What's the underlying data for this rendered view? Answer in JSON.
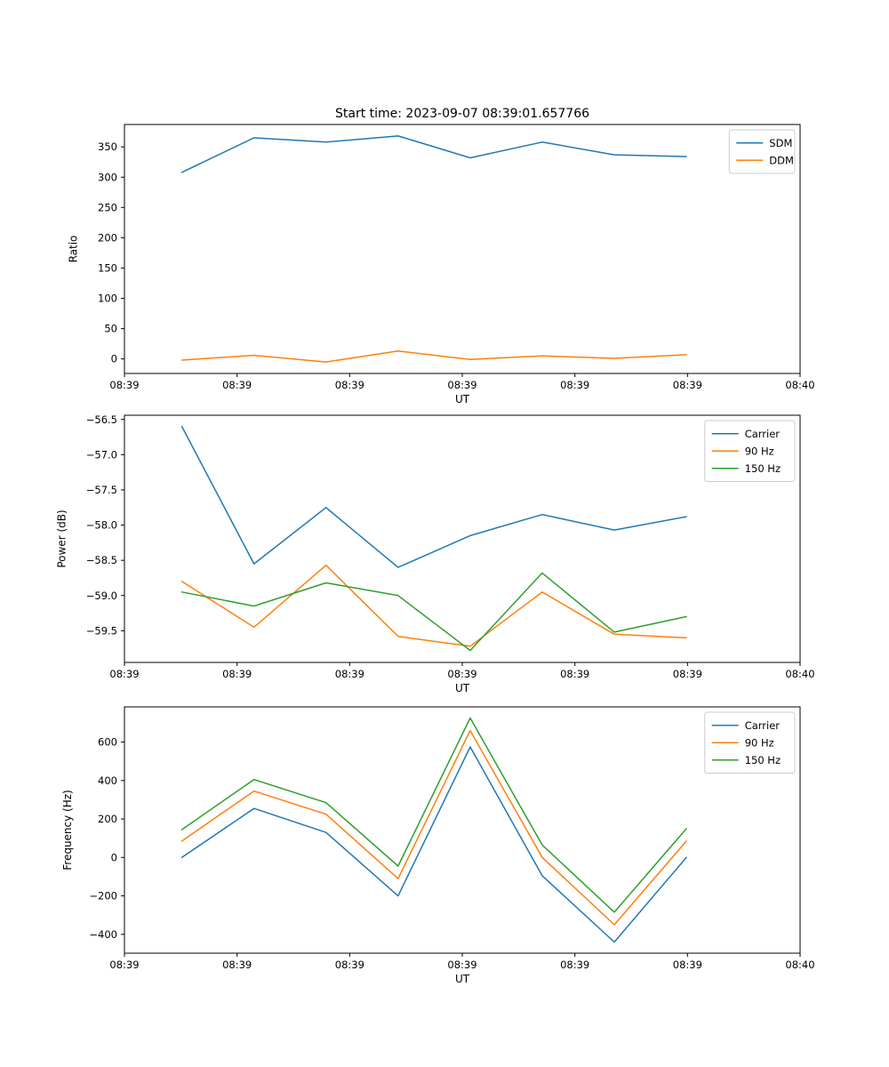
{
  "figure": {
    "title": "Start time: 2023-09-07 08:39:01.657766",
    "background": "#ffffff"
  },
  "colors": {
    "blue": "#1f77b4",
    "orange": "#ff7f0e",
    "green": "#2ca02c",
    "spine": "#000000",
    "legend_edge": "#cccccc"
  },
  "chart_data": [
    {
      "type": "line",
      "title": "Start time: 2023-09-07 08:39:01.657766",
      "xlabel": "UT",
      "ylabel": "Ratio",
      "xlim": [
        0,
        60
      ],
      "ylim": [
        -24,
        387
      ],
      "x_seconds": [
        5.1,
        11.5,
        17.9,
        24.3,
        30.7,
        37.1,
        43.5,
        49.9
      ],
      "xticks": [
        {
          "t": 0,
          "label": "08:39"
        },
        {
          "t": 10,
          "label": "08:39"
        },
        {
          "t": 20,
          "label": "08:39"
        },
        {
          "t": 30,
          "label": "08:39"
        },
        {
          "t": 40,
          "label": "08:39"
        },
        {
          "t": 50,
          "label": "08:39"
        },
        {
          "t": 60,
          "label": "08:40"
        }
      ],
      "yticks": [
        {
          "v": 0,
          "label": "0"
        },
        {
          "v": 50,
          "label": "50"
        },
        {
          "v": 100,
          "label": "100"
        },
        {
          "v": 150,
          "label": "150"
        },
        {
          "v": 200,
          "label": "200"
        },
        {
          "v": 250,
          "label": "250"
        },
        {
          "v": 300,
          "label": "300"
        },
        {
          "v": 350,
          "label": "350"
        }
      ],
      "series": [
        {
          "name": "SDM",
          "color": "#1f77b4",
          "values": [
            308,
            365,
            358,
            368,
            332,
            358,
            337,
            334
          ]
        },
        {
          "name": "DDM",
          "color": "#ff7f0e",
          "values": [
            -2,
            6,
            -5,
            13,
            -1,
            5,
            1,
            7
          ]
        }
      ],
      "legend": {
        "location": "upper right"
      }
    },
    {
      "type": "line",
      "title": "",
      "xlabel": "UT",
      "ylabel": "Power (dB)",
      "xlim": [
        0,
        60
      ],
      "ylim": [
        -59.95,
        -56.44
      ],
      "x_seconds": [
        5.1,
        11.5,
        17.9,
        24.3,
        30.7,
        37.1,
        43.5,
        49.9
      ],
      "xticks": [
        {
          "t": 0,
          "label": "08:39"
        },
        {
          "t": 10,
          "label": "08:39"
        },
        {
          "t": 20,
          "label": "08:39"
        },
        {
          "t": 30,
          "label": "08:39"
        },
        {
          "t": 40,
          "label": "08:39"
        },
        {
          "t": 50,
          "label": "08:39"
        },
        {
          "t": 60,
          "label": "08:40"
        }
      ],
      "yticks": [
        {
          "v": -56.5,
          "label": "−56.5"
        },
        {
          "v": -57.0,
          "label": "−57.0"
        },
        {
          "v": -57.5,
          "label": "−57.5"
        },
        {
          "v": -58.0,
          "label": "−58.0"
        },
        {
          "v": -58.5,
          "label": "−58.5"
        },
        {
          "v": -59.0,
          "label": "−59.0"
        },
        {
          "v": -59.5,
          "label": "−59.5"
        }
      ],
      "series": [
        {
          "name": "Carrier",
          "color": "#1f77b4",
          "values": [
            -56.6,
            -58.55,
            -57.75,
            -58.6,
            -58.15,
            -57.85,
            -58.07,
            -57.88
          ]
        },
        {
          "name": "90 Hz",
          "color": "#ff7f0e",
          "values": [
            -58.8,
            -59.45,
            -58.57,
            -59.58,
            -59.72,
            -58.95,
            -59.55,
            -59.6
          ]
        },
        {
          "name": "150 Hz",
          "color": "#2ca02c",
          "values": [
            -58.95,
            -59.15,
            -58.82,
            -59.0,
            -59.78,
            -58.68,
            -59.52,
            -59.3
          ]
        }
      ],
      "legend": {
        "location": "upper right"
      }
    },
    {
      "type": "line",
      "title": "",
      "xlabel": "UT",
      "ylabel": "Frequency (Hz)",
      "xlim": [
        0,
        60
      ],
      "ylim": [
        -498,
        783
      ],
      "x_seconds": [
        5.1,
        11.5,
        17.9,
        24.3,
        30.7,
        37.1,
        43.5,
        49.9
      ],
      "xticks": [
        {
          "t": 0,
          "label": "08:39"
        },
        {
          "t": 10,
          "label": "08:39"
        },
        {
          "t": 20,
          "label": "08:39"
        },
        {
          "t": 30,
          "label": "08:39"
        },
        {
          "t": 40,
          "label": "08:39"
        },
        {
          "t": 50,
          "label": "08:39"
        },
        {
          "t": 60,
          "label": "08:40"
        }
      ],
      "yticks": [
        {
          "v": -400,
          "label": "−400"
        },
        {
          "v": -200,
          "label": "−200"
        },
        {
          "v": 0,
          "label": "0"
        },
        {
          "v": 200,
          "label": "200"
        },
        {
          "v": 400,
          "label": "400"
        },
        {
          "v": 600,
          "label": "600"
        }
      ],
      "series": [
        {
          "name": "Carrier",
          "color": "#1f77b4",
          "values": [
            0,
            255,
            130,
            -200,
            575,
            -95,
            -440,
            0
          ]
        },
        {
          "name": "90 Hz",
          "color": "#ff7f0e",
          "values": [
            85,
            345,
            225,
            -110,
            660,
            0,
            -350,
            85
          ]
        },
        {
          "name": "150 Hz",
          "color": "#2ca02c",
          "values": [
            145,
            405,
            285,
            -45,
            725,
            65,
            -285,
            150
          ]
        }
      ],
      "legend": {
        "location": "upper right"
      }
    }
  ]
}
